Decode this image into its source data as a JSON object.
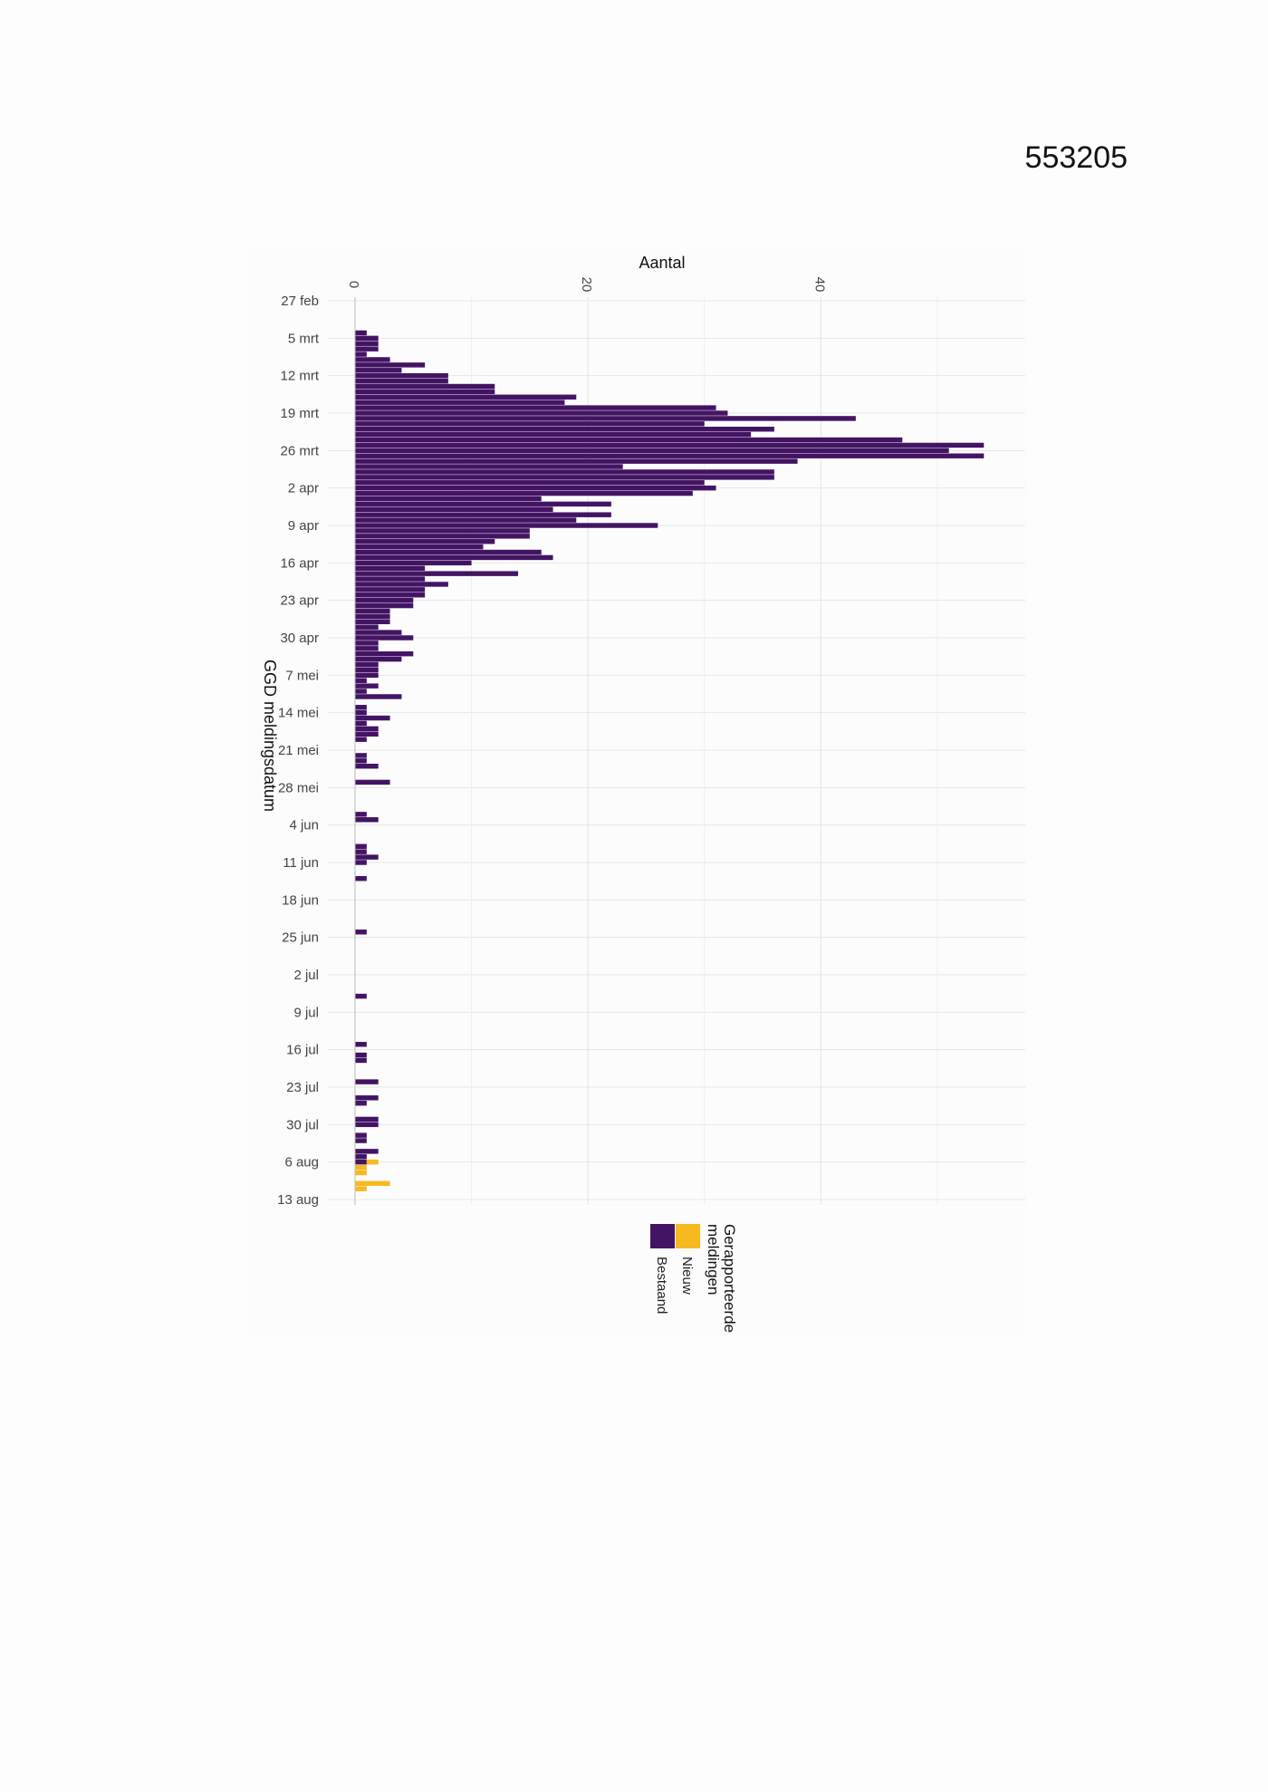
{
  "document": {
    "number": "553205"
  },
  "chart_data": {
    "type": "bar",
    "orientation": "horizontal",
    "stacked": true,
    "xlabel": "Aantal",
    "ylabel": "GGD meldingsdatum",
    "xlim": [
      0,
      56
    ],
    "xticks": [
      0,
      20,
      40
    ],
    "y_axis": "date",
    "ylim": [
      "2020-02-27",
      "2020-08-13"
    ],
    "grid": true,
    "ytick_labels": [
      "27 feb",
      "5 mrt",
      "12 mrt",
      "19 mrt",
      "26 mrt",
      "2 apr",
      "9 apr",
      "16 apr",
      "23 apr",
      "30 apr",
      "7 mei",
      "14 mei",
      "21 mei",
      "28 mei",
      "4 jun",
      "11 jun",
      "18 jun",
      "25 jun",
      "2 jul",
      "9 jul",
      "16 jul",
      "23 jul",
      "30 jul",
      "6 aug",
      "13 aug"
    ],
    "legend": {
      "title": "Gerapporteerde meldingen",
      "position": "bottom",
      "entries": [
        {
          "name": "Nieuw",
          "color": "#f6b91f"
        },
        {
          "name": "Bestaand",
          "color": "#431463"
        }
      ]
    },
    "series": [
      {
        "name": "Bestaand",
        "color": "#431463",
        "x": [
          "2020-03-04",
          "2020-03-05",
          "2020-03-06",
          "2020-03-07",
          "2020-03-08",
          "2020-03-09",
          "2020-03-10",
          "2020-03-11",
          "2020-03-12",
          "2020-03-13",
          "2020-03-14",
          "2020-03-15",
          "2020-03-16",
          "2020-03-17",
          "2020-03-18",
          "2020-03-19",
          "2020-03-20",
          "2020-03-21",
          "2020-03-22",
          "2020-03-23",
          "2020-03-24",
          "2020-03-25",
          "2020-03-26",
          "2020-03-27",
          "2020-03-28",
          "2020-03-29",
          "2020-03-30",
          "2020-03-31",
          "2020-04-01",
          "2020-04-02",
          "2020-04-03",
          "2020-04-04",
          "2020-04-05",
          "2020-04-06",
          "2020-04-07",
          "2020-04-08",
          "2020-04-09",
          "2020-04-10",
          "2020-04-11",
          "2020-04-12",
          "2020-04-13",
          "2020-04-14",
          "2020-04-15",
          "2020-04-16",
          "2020-04-17",
          "2020-04-18",
          "2020-04-19",
          "2020-04-20",
          "2020-04-21",
          "2020-04-22",
          "2020-04-23",
          "2020-04-24",
          "2020-04-25",
          "2020-04-26",
          "2020-04-27",
          "2020-04-28",
          "2020-04-29",
          "2020-04-30",
          "2020-05-01",
          "2020-05-02",
          "2020-05-03",
          "2020-05-04",
          "2020-05-05",
          "2020-05-06",
          "2020-05-07",
          "2020-05-08",
          "2020-05-09",
          "2020-05-10",
          "2020-05-11",
          "2020-05-13",
          "2020-05-14",
          "2020-05-15",
          "2020-05-16",
          "2020-05-17",
          "2020-05-18",
          "2020-05-19",
          "2020-05-22",
          "2020-05-23",
          "2020-05-24",
          "2020-05-27",
          "2020-06-02",
          "2020-06-03",
          "2020-06-08",
          "2020-06-09",
          "2020-06-10",
          "2020-06-11",
          "2020-06-14",
          "2020-06-24",
          "2020-07-06",
          "2020-07-15",
          "2020-07-17",
          "2020-07-18",
          "2020-07-22",
          "2020-07-25",
          "2020-07-26",
          "2020-07-29",
          "2020-07-30",
          "2020-08-01",
          "2020-08-02",
          "2020-08-04",
          "2020-08-05",
          "2020-08-06"
        ],
        "values": [
          1,
          2,
          2,
          2,
          1,
          3,
          6,
          4,
          8,
          8,
          12,
          12,
          19,
          18,
          31,
          32,
          43,
          30,
          36,
          34,
          47,
          54,
          51,
          54,
          38,
          23,
          36,
          36,
          30,
          31,
          29,
          16,
          22,
          17,
          22,
          19,
          26,
          15,
          15,
          12,
          11,
          16,
          17,
          10,
          6,
          14,
          6,
          8,
          6,
          6,
          5,
          5,
          3,
          3,
          3,
          2,
          4,
          5,
          2,
          2,
          5,
          4,
          2,
          2,
          2,
          1,
          2,
          1,
          4,
          1,
          1,
          3,
          1,
          2,
          2,
          1,
          1,
          1,
          2,
          3,
          1,
          2,
          1,
          1,
          2,
          1,
          1,
          1,
          1,
          1,
          1,
          1,
          2,
          2,
          1,
          2,
          2,
          1,
          1,
          2,
          1,
          1
        ],
        "data_note": ""
      },
      {
        "name": "Nieuw",
        "color": "#f6b91f",
        "x": [
          "2020-08-06",
          "2020-08-07",
          "2020-08-08",
          "2020-08-09",
          "2020-08-10",
          "2020-08-11"
        ],
        "values": [
          1,
          1,
          1,
          0,
          3,
          1
        ]
      }
    ]
  }
}
